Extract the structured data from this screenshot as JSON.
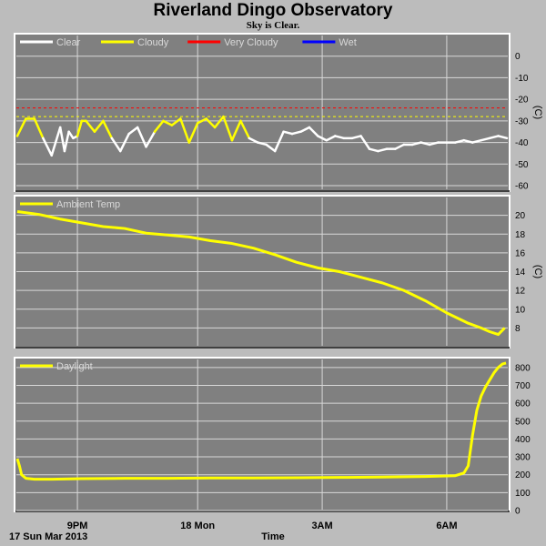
{
  "header": {
    "title": "Riverland Dingo Observatory",
    "subtitle": "Sky is Clear."
  },
  "footer": {
    "date_label": "17 Sun Mar 2013",
    "x_axis_label": "Time"
  },
  "colors": {
    "background": "#bcbcbc",
    "plot_bg": "#808080",
    "grid": "#d8d8d8",
    "clear": "#ffffff",
    "cloudy": "#ffff00",
    "very_cloudy": "#ff0000",
    "wet": "#0000ff"
  },
  "chart_data": [
    {
      "type": "line",
      "legend": [
        {
          "name": "Clear",
          "color": "#ffffff"
        },
        {
          "name": "Cloudy",
          "color": "#ffff00"
        },
        {
          "name": "Very Cloudy",
          "color": "#ff0000"
        },
        {
          "name": "Wet",
          "color": "#0000ff"
        }
      ],
      "ylabel": "(C)",
      "ylim": [
        -60,
        10
      ],
      "y_ticks": [
        "0",
        "-10",
        "-20",
        "-30",
        "-40",
        "-50",
        "-60"
      ],
      "y_tick_values": [
        0,
        -10,
        -20,
        -30,
        -40,
        -50,
        -60
      ],
      "thresholds": [
        {
          "name": "Very Cloudy",
          "value": -24,
          "color": "#ff0000"
        },
        {
          "name": "Cloudy",
          "value": -28,
          "color": "#ffff00"
        }
      ],
      "cloudy_above": -32,
      "xlim": [
        0,
        11.4
      ],
      "series": [
        {
          "x": [
            0.0,
            0.2,
            0.4,
            0.6,
            0.8,
            1.0,
            1.1,
            1.2,
            1.3,
            1.4,
            1.5,
            1.6,
            1.8,
            2.0,
            2.2,
            2.4,
            2.6,
            2.8,
            3.0,
            3.2,
            3.4,
            3.6,
            3.8,
            4.0,
            4.2,
            4.4,
            4.6,
            4.8,
            5.0,
            5.2,
            5.4,
            5.6,
            5.8,
            6.0,
            6.2,
            6.4,
            6.6,
            6.8,
            7.0,
            7.2,
            7.4,
            7.6,
            7.8,
            8.0,
            8.2,
            8.4,
            8.6,
            8.8,
            9.0,
            9.2,
            9.4,
            9.6,
            9.8,
            10.0,
            10.2,
            10.4,
            10.6,
            10.8,
            11.0,
            11.2,
            11.4
          ],
          "values": [
            -37,
            -29,
            -29,
            -38,
            -46,
            -33,
            -44,
            -35,
            -38,
            -37,
            -30,
            -30,
            -35,
            -30,
            -38,
            -44,
            -36,
            -33,
            -42,
            -35,
            -30,
            -32,
            -29,
            -40,
            -31,
            -29,
            -33,
            -28,
            -39,
            -30,
            -38,
            -40,
            -41,
            -44,
            -35,
            -36,
            -35,
            -33,
            -37,
            -39,
            -37,
            -38,
            -38,
            -37,
            -43,
            -44,
            -43,
            -43,
            -41,
            -41,
            -40,
            -41,
            -40,
            -40,
            -40,
            -39,
            -40,
            -39,
            -38,
            -37,
            -38
          ]
        }
      ]
    },
    {
      "type": "line",
      "legend": [
        {
          "name": "Ambient Temp",
          "color": "#ffff00"
        }
      ],
      "ylabel": "(C)",
      "ylim": [
        6,
        22
      ],
      "y_ticks": [
        "8",
        "10",
        "12",
        "14",
        "16",
        "18",
        "20"
      ],
      "y_tick_values": [
        8,
        10,
        12,
        14,
        16,
        18,
        20
      ],
      "xlim": [
        0,
        11.4
      ],
      "series": [
        {
          "name": "Ambient Temp",
          "x": [
            0.0,
            0.5,
            1.0,
            1.5,
            2.0,
            2.5,
            3.0,
            3.5,
            4.0,
            4.5,
            5.0,
            5.5,
            6.0,
            6.5,
            7.0,
            7.5,
            8.0,
            8.5,
            9.0,
            9.5,
            10.0,
            10.5,
            10.8,
            11.0,
            11.2,
            11.35
          ],
          "values": [
            20.4,
            20.1,
            19.6,
            19.2,
            18.8,
            18.6,
            18.1,
            17.9,
            17.7,
            17.3,
            17.0,
            16.5,
            15.8,
            15.0,
            14.4,
            14.0,
            13.4,
            12.8,
            12.0,
            10.9,
            9.6,
            8.5,
            8.0,
            7.6,
            7.3,
            8.0
          ]
        }
      ]
    },
    {
      "type": "line",
      "legend": [
        {
          "name": "Daylight",
          "color": "#ffff00"
        }
      ],
      "ylim": [
        0,
        850
      ],
      "y_ticks": [
        "0",
        "100",
        "200",
        "300",
        "400",
        "500",
        "600",
        "700",
        "800"
      ],
      "y_tick_values": [
        0,
        100,
        200,
        300,
        400,
        500,
        600,
        700,
        800
      ],
      "xlim": [
        0,
        11.4
      ],
      "x_tick_labels": [
        "9PM",
        "18 Mon",
        "3AM",
        "6AM"
      ],
      "x_tick_values": [
        1.4,
        4.2,
        7.1,
        10.0
      ],
      "series": [
        {
          "name": "Daylight",
          "x": [
            0.0,
            0.05,
            0.1,
            0.2,
            0.4,
            0.8,
            1.5,
            2.5,
            3.5,
            4.5,
            5.5,
            6.5,
            7.5,
            8.5,
            9.5,
            10.2,
            10.4,
            10.5,
            10.6,
            10.7,
            10.8,
            10.9,
            11.0,
            11.1,
            11.2,
            11.3,
            11.38
          ],
          "values": [
            290,
            250,
            200,
            180,
            175,
            175,
            178,
            180,
            180,
            182,
            182,
            183,
            185,
            187,
            190,
            195,
            210,
            250,
            420,
            560,
            640,
            690,
            730,
            770,
            800,
            820,
            825
          ]
        }
      ]
    }
  ]
}
